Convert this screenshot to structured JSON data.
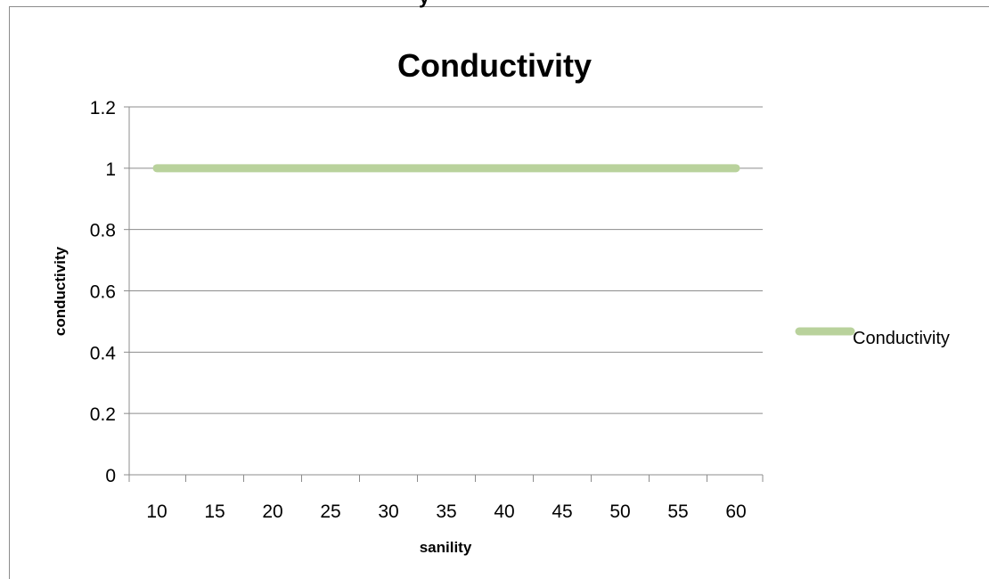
{
  "top_clipped_text": "y",
  "chart_data": {
    "type": "line",
    "title": "Conductivity",
    "xlabel": "sanility",
    "ylabel": "conductivity",
    "categories": [
      "10",
      "15",
      "20",
      "25",
      "30",
      "35",
      "40",
      "45",
      "50",
      "55",
      "60"
    ],
    "yticks": [
      "0",
      "0.2",
      "0.4",
      "0.6",
      "0.8",
      "1",
      "1.2"
    ],
    "ylim": [
      0,
      1.2
    ],
    "grid": true,
    "legend_position": "right",
    "series": [
      {
        "name": "Conductivity",
        "values": [
          1,
          1,
          1,
          1,
          1,
          1,
          1,
          1,
          1,
          1,
          1
        ],
        "color": "#b9d29c"
      }
    ]
  }
}
